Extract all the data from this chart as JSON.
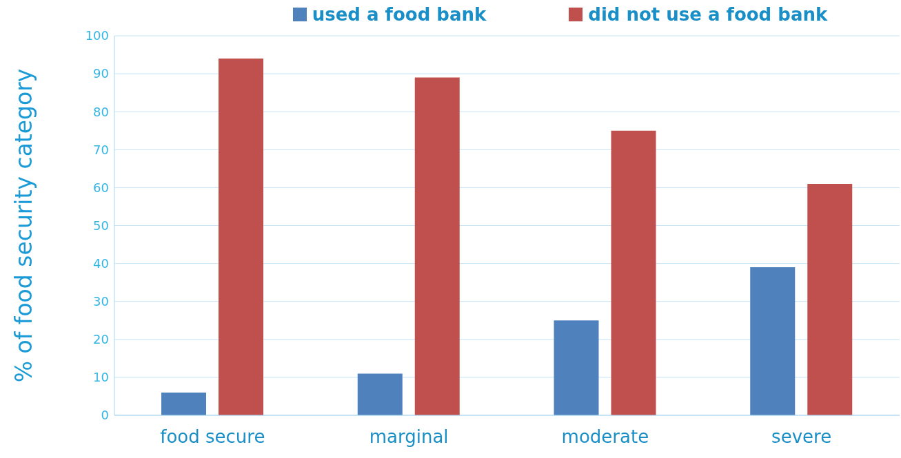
{
  "chart_data": {
    "type": "bar",
    "ylabel": "% of food security category",
    "categories": [
      "food secure",
      "marginal",
      "moderate",
      "severe"
    ],
    "series": [
      {
        "name": "used a food bank",
        "color": "#4f81bd",
        "values": [
          6,
          11,
          25,
          39
        ]
      },
      {
        "name": "did not use a food bank",
        "color": "#c0504d",
        "values": [
          94,
          89,
          75,
          61
        ]
      }
    ],
    "ylim": [
      0,
      100
    ],
    "yticks": [
      0,
      10,
      20,
      30,
      40,
      50,
      60,
      70,
      80,
      90,
      100
    ],
    "grid": "y",
    "legend": "top"
  }
}
